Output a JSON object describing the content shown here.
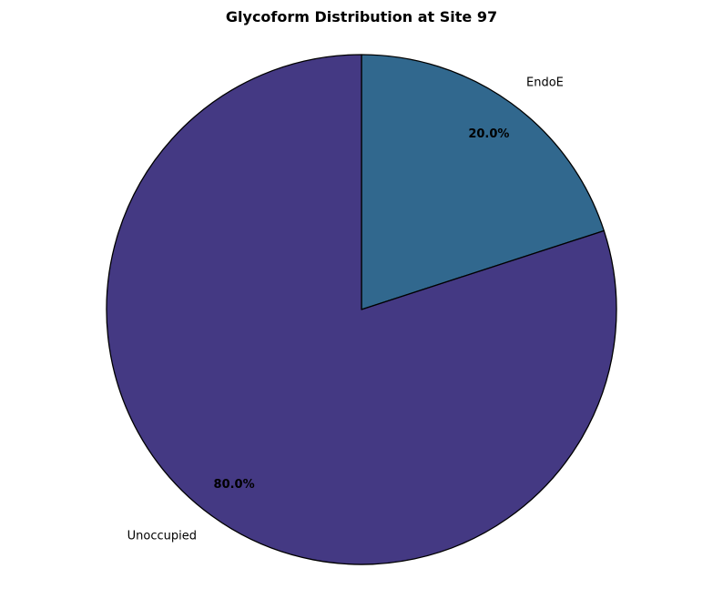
{
  "chart_data": {
    "type": "pie",
    "title": "Glycoform Distribution at Site 97",
    "start_angle": 90,
    "direction": "clockwise",
    "edge_color": "#000000",
    "slices": [
      {
        "label": "EndoE",
        "value": 20.0,
        "pct_label": "20.0%",
        "color": "#31688e"
      },
      {
        "label": "Unoccupied",
        "value": 80.0,
        "pct_label": "80.0%",
        "color": "#443983"
      }
    ]
  }
}
